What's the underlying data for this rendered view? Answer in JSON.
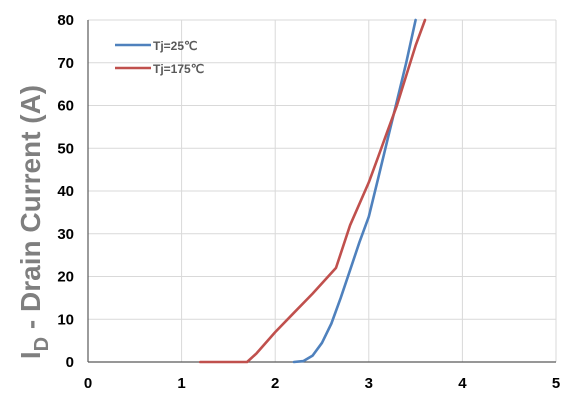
{
  "chart_data": {
    "type": "line",
    "title": "",
    "xlabel": "",
    "ylabel": {
      "main": "I",
      "sub": "D",
      "rest": " - Drain Current (A)"
    },
    "xlim": [
      0,
      5
    ],
    "ylim": [
      0,
      80
    ],
    "xticks": [
      "0",
      "1",
      "2",
      "3",
      "4",
      "5"
    ],
    "yticks": [
      "0",
      "10",
      "20",
      "30",
      "40",
      "50",
      "60",
      "70",
      "80"
    ],
    "grid": true,
    "legend_position": "top-left",
    "series": [
      {
        "name": "Tj=25℃",
        "color": "#4f81bd",
        "x": [
          2.2,
          2.3,
          2.4,
          2.5,
          2.6,
          2.7,
          2.8,
          2.9,
          3.0,
          3.1,
          3.2,
          3.3,
          3.4,
          3.5
        ],
        "y": [
          0,
          0.2,
          1.5,
          4.5,
          9,
          15,
          21.5,
          28,
          34,
          43,
          52,
          61,
          70,
          80
        ]
      },
      {
        "name": "Tj=175℃",
        "color": "#c0504d",
        "x": [
          1.2,
          1.7,
          1.8,
          2.0,
          2.2,
          2.4,
          2.65,
          2.8,
          3.0,
          3.1,
          3.2,
          3.3,
          3.4,
          3.5,
          3.6
        ],
        "y": [
          0,
          0,
          2,
          7,
          11.5,
          16,
          22,
          32,
          42,
          48,
          54,
          60,
          67,
          74,
          80
        ]
      }
    ]
  }
}
